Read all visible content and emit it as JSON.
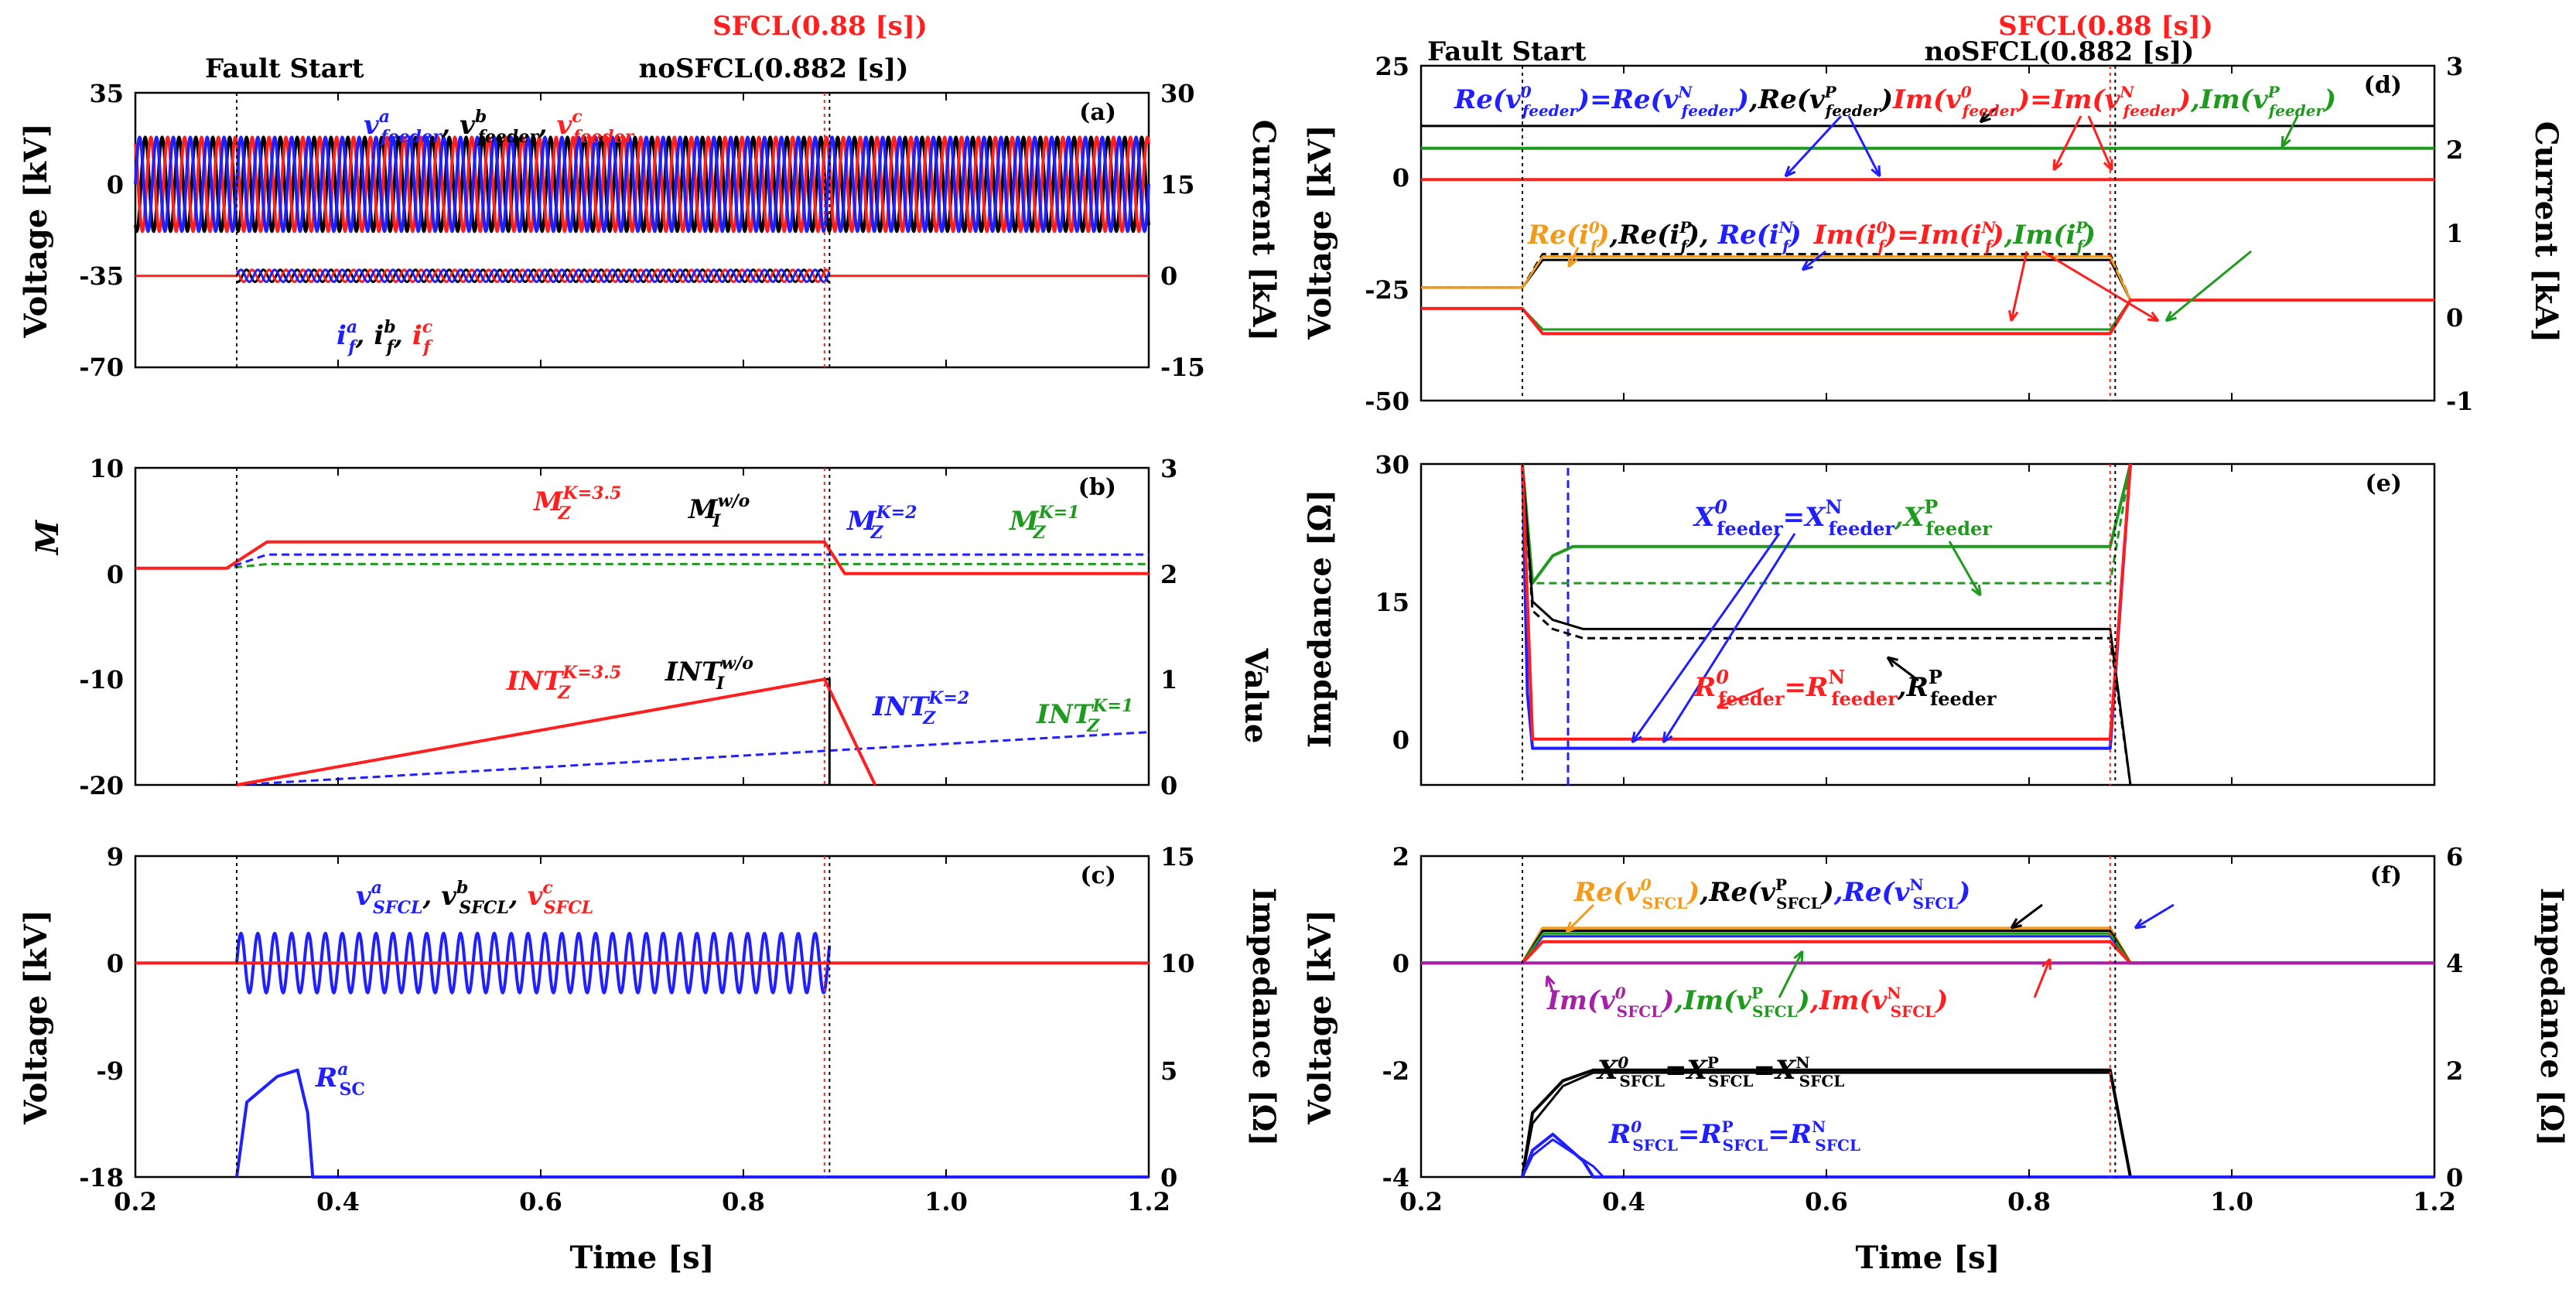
{
  "figure": {
    "x_label": "Time [s]",
    "fault_start": "Fault Start",
    "sfcl_time": "SFCL(0.88 [s])",
    "nosfcl_time": "noSFCL(0.882 [s])"
  },
  "chart_data": [
    {
      "id": "a",
      "panel_label": "(a)",
      "type": "line",
      "xlim": [
        0.2,
        1.2
      ],
      "x_ticks": [
        "0.2",
        "0.4",
        "0.6",
        "0.8",
        "1.0",
        "1.2"
      ],
      "ylabel": "Voltage [kV]",
      "ylim": [
        -70,
        35
      ],
      "y_ticks": [
        "35",
        "0",
        "-35",
        "-70"
      ],
      "y2label": "Current [kA]",
      "y2lim": [
        -15,
        30
      ],
      "y2_ticks": [
        "30",
        "15",
        "0",
        "-15"
      ],
      "series": [
        {
          "name": "feeder voltages a,b,c",
          "amplitude_kV": 18,
          "frequency_hz": 60,
          "range_s": [
            0.2,
            1.2
          ]
        },
        {
          "name": "fault currents a,b,c",
          "amplitude_kA": 1,
          "frequency_hz": 60,
          "range_s": [
            0.3,
            0.885
          ]
        }
      ],
      "legend": {
        "v": "v",
        "a": "a",
        "b": "b",
        "c": "c",
        "feeder": "feeder",
        "i": "i",
        "f": "f",
        "sep": ", "
      }
    },
    {
      "id": "b",
      "panel_label": "(b)",
      "type": "line",
      "xlim": [
        0.2,
        1.2
      ],
      "x_ticks": [
        "0.2",
        "0.4",
        "0.6",
        "0.8",
        "1.0",
        "1.2"
      ],
      "ylabel": "M",
      "ylim": [
        -20,
        10
      ],
      "y_ticks": [
        "10",
        "0",
        "-10",
        "-20"
      ],
      "y2label": "Value",
      "y2lim": [
        0,
        3
      ],
      "y2_ticks": [
        "3",
        "2",
        "1",
        "0"
      ],
      "series": [
        {
          "name": "M_Z K=3.5",
          "values": [
            [
              0.2,
              0.5
            ],
            [
              0.29,
              0.5
            ],
            [
              0.33,
              3
            ],
            [
              0.88,
              3
            ],
            [
              0.9,
              0
            ],
            [
              1.2,
              0
            ]
          ]
        },
        {
          "name": "M_Z K=2",
          "values": [
            [
              0.2,
              0.5
            ],
            [
              0.29,
              0.5
            ],
            [
              0.33,
              1.8
            ],
            [
              1.2,
              1.8
            ]
          ]
        },
        {
          "name": "M_Z K=1",
          "values": [
            [
              0.2,
              0.5
            ],
            [
              0.29,
              0.5
            ],
            [
              0.33,
              0.9
            ],
            [
              1.2,
              0.9
            ]
          ]
        },
        {
          "name": "INT_Z K=3.5",
          "values": [
            [
              0.3,
              0
            ],
            [
              0.88,
              1.0
            ],
            [
              0.93,
              0
            ]
          ]
        },
        {
          "name": "INT_Z K=2",
          "values": [
            [
              0.3,
              0
            ],
            [
              1.2,
              0.5
            ]
          ]
        }
      ],
      "labels": {
        "M": "M",
        "Z": "Z",
        "I": "I",
        "INT": "INT",
        "k35": "K=3.5",
        "k2": "K=2",
        "k1": "K=1",
        "wo": "w/o"
      }
    },
    {
      "id": "c",
      "panel_label": "(c)",
      "type": "line",
      "xlim": [
        0.2,
        1.2
      ],
      "x_ticks": [
        "0.2",
        "0.4",
        "0.6",
        "0.8",
        "1.0",
        "1.2"
      ],
      "ylabel": "Voltage [kV]",
      "ylim": [
        -18,
        9
      ],
      "y_ticks": [
        "9",
        "0",
        "-9",
        "-18"
      ],
      "y2label": "Impedance [Ω]",
      "y2lim": [
        0,
        15
      ],
      "y2_ticks": [
        "15",
        "10",
        "5",
        "0"
      ],
      "series": [
        {
          "name": "SFCL voltages a,b,c",
          "amplitude_kV": 2.5,
          "frequency_hz": 60,
          "range_s": [
            0.3,
            0.885
          ]
        },
        {
          "name": "R_SC a",
          "values": [
            [
              0.3,
              0
            ],
            [
              0.31,
              3.5
            ],
            [
              0.34,
              4.7
            ],
            [
              0.36,
              5.0
            ],
            [
              0.37,
              3.0
            ],
            [
              0.375,
              0
            ],
            [
              1.2,
              0
            ]
          ]
        }
      ],
      "labels": {
        "v": "v",
        "a": "a",
        "b": "b",
        "c": "c",
        "sfcl": "SFCL",
        "R": "R",
        "sc": "SC",
        "sep": ", "
      }
    },
    {
      "id": "d",
      "panel_label": "(d)",
      "type": "line",
      "xlim": [
        0.2,
        1.2
      ],
      "x_ticks": [
        "0.2",
        "0.4",
        "0.6",
        "0.8",
        "1.0",
        "1.2"
      ],
      "ylabel": "Voltage [kV]",
      "ylim": [
        -50,
        25
      ],
      "y_ticks": [
        "25",
        "0",
        "-25",
        "-50"
      ],
      "y2label": "Current [kA]",
      "y2lim": [
        -1,
        3
      ],
      "y2_ticks": [
        "3",
        "2",
        "1",
        "0",
        "-1"
      ],
      "series": [
        {
          "name": "Re(v feeder P)",
          "values": [
            [
              0.2,
              11.5
            ],
            [
              1.2,
              11.5
            ]
          ]
        },
        {
          "name": "Im(v feeder P)",
          "values": [
            [
              0.2,
              6.5
            ],
            [
              1.2,
              6.5
            ]
          ]
        },
        {
          "name": "Im(v feeder 0)=Im(v feeder N)",
          "values": [
            [
              0.2,
              -0.5
            ],
            [
              1.2,
              -0.5
            ]
          ]
        },
        {
          "name": "Re(i f P)",
          "values": [
            [
              0.2,
              0.35
            ],
            [
              0.3,
              0.35
            ],
            [
              0.32,
              0.75
            ],
            [
              0.88,
              0.75
            ],
            [
              0.9,
              0.2
            ],
            [
              1.2,
              0.2
            ]
          ]
        },
        {
          "name": "Re(i f N)",
          "values": [
            [
              0.2,
              0.35
            ],
            [
              0.3,
              0.35
            ],
            [
              0.32,
              0.68
            ],
            [
              0.88,
              0.68
            ],
            [
              0.9,
              0.2
            ],
            [
              1.2,
              0.2
            ]
          ]
        },
        {
          "name": "Im(i f 0)=Im(i f N)",
          "values": [
            [
              0.2,
              0.1
            ],
            [
              0.3,
              0.1
            ],
            [
              0.32,
              -0.2
            ],
            [
              0.88,
              -0.2
            ],
            [
              0.9,
              0.2
            ],
            [
              1.2,
              0.2
            ]
          ]
        }
      ],
      "labels": {
        "re": "Re(",
        "im": "Im(",
        "close": ")",
        "eq": "=",
        "sep": ",",
        "v": "v",
        "i": "i",
        "feeder": "feeder",
        "f": "f",
        "zero": "0",
        "N": "N",
        "P": "P"
      }
    },
    {
      "id": "e",
      "panel_label": "(e)",
      "type": "line",
      "xlim": [
        0.2,
        1.2
      ],
      "x_ticks": [
        "0.2",
        "0.4",
        "0.6",
        "0.8",
        "1.0",
        "1.2"
      ],
      "ylabel": "Impedance [Ω]",
      "ylim": [
        -5,
        30
      ],
      "y_ticks": [
        "30",
        "15",
        "0"
      ],
      "series": [
        {
          "name": "X feeder P",
          "values": [
            [
              0.3,
              30
            ],
            [
              0.31,
              17
            ],
            [
              0.33,
              20
            ],
            [
              0.35,
              21
            ],
            [
              0.88,
              21
            ],
            [
              0.9,
              30
            ]
          ]
        },
        {
          "name": "X feeder 0=X feeder N",
          "values": [
            [
              0.3,
              30
            ],
            [
              0.31,
              17
            ],
            [
              0.33,
              17
            ],
            [
              0.88,
              17
            ],
            [
              0.9,
              30
            ]
          ]
        },
        {
          "name": "R feeder P",
          "values": [
            [
              0.3,
              30
            ],
            [
              0.31,
              15
            ],
            [
              0.33,
              13
            ],
            [
              0.36,
              12
            ],
            [
              0.88,
              12
            ],
            [
              0.9,
              -5
            ]
          ]
        },
        {
          "name": "R feeder 0=R feeder N",
          "values": [
            [
              0.3,
              30
            ],
            [
              0.31,
              0
            ],
            [
              0.88,
              0
            ],
            [
              0.9,
              30
            ]
          ]
        }
      ],
      "labels": {
        "X": "X",
        "R": "R",
        "feeder": "feeder",
        "zero": "0",
        "N": "N",
        "P": "P",
        "eq": "=",
        "sep": ","
      }
    },
    {
      "id": "f",
      "panel_label": "(f)",
      "type": "line",
      "xlim": [
        0.2,
        1.2
      ],
      "x_ticks": [
        "0.2",
        "0.4",
        "0.6",
        "0.8",
        "1.0",
        "1.2"
      ],
      "ylabel": "Voltage [kV]",
      "ylim": [
        -4,
        2
      ],
      "y_ticks": [
        "2",
        "0",
        "-2",
        "-4"
      ],
      "y2label": "Impedance [Ω]",
      "y2lim": [
        0,
        6
      ],
      "y2_ticks": [
        "6",
        "4",
        "2",
        "0"
      ],
      "series": [
        {
          "name": "Re(v SFCL 0)",
          "values": [
            [
              0.2,
              0
            ],
            [
              0.3,
              0
            ],
            [
              0.32,
              0.65
            ],
            [
              0.88,
              0.65
            ],
            [
              0.9,
              0
            ],
            [
              1.2,
              0
            ]
          ]
        },
        {
          "name": "Im(v SFCL P)",
          "values": [
            [
              0.2,
              0
            ],
            [
              0.3,
              0
            ],
            [
              0.32,
              0.55
            ],
            [
              0.88,
              0.55
            ],
            [
              0.9,
              0
            ],
            [
              1.2,
              0
            ]
          ]
        },
        {
          "name": "Im(v SFCL N)",
          "values": [
            [
              0.2,
              0
            ],
            [
              0.3,
              0
            ],
            [
              0.32,
              0.4
            ],
            [
              0.88,
              0.4
            ],
            [
              0.9,
              0
            ],
            [
              1.2,
              0
            ]
          ]
        },
        {
          "name": "Im(v SFCL 0)",
          "values": [
            [
              0.2,
              0
            ],
            [
              1.2,
              0
            ]
          ]
        },
        {
          "name": "X SFCL 0=X SFCL P=X SFCL N",
          "values": [
            [
              0.3,
              0
            ],
            [
              0.31,
              1.2
            ],
            [
              0.34,
              1.8
            ],
            [
              0.37,
              2.0
            ],
            [
              0.88,
              2.0
            ],
            [
              0.9,
              0
            ]
          ]
        },
        {
          "name": "R SFCL 0=R SFCL P=R SFCL N",
          "values": [
            [
              0.3,
              0
            ],
            [
              0.31,
              0.5
            ],
            [
              0.33,
              0.8
            ],
            [
              0.36,
              0.3
            ],
            [
              0.37,
              0
            ],
            [
              1.2,
              0
            ]
          ]
        }
      ],
      "labels": {
        "re": "Re(",
        "im": "Im(",
        "close": ")",
        "eq": "=",
        "sep": ",",
        "v": "v",
        "X": "X",
        "R": "R",
        "sfcl": "SFCL",
        "zero": "0",
        "N": "N",
        "P": "P"
      }
    }
  ]
}
